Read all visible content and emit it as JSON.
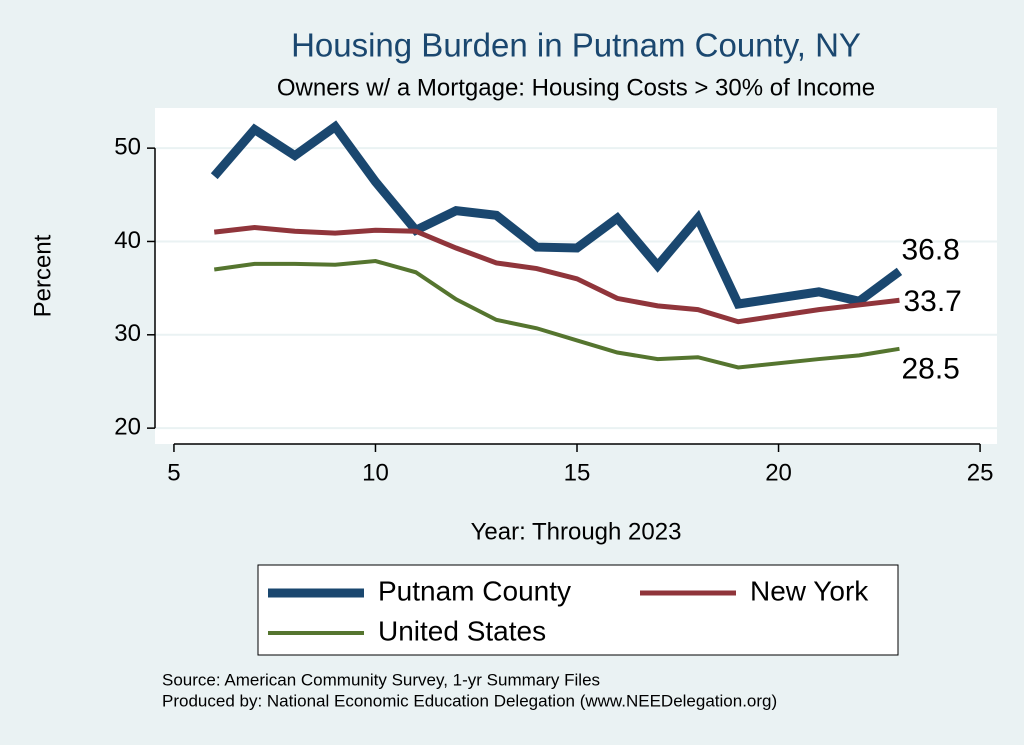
{
  "chart_data": {
    "type": "line",
    "title": "Housing Burden in Putnam County, NY",
    "subtitle": "Owners w/ a Mortgage: Housing Costs > 30% of Income",
    "x_label": "Year: Through 2023",
    "y_label": "Percent",
    "x": [
      6,
      7,
      8,
      9,
      10,
      11,
      12,
      13,
      14,
      15,
      16,
      17,
      18,
      19,
      21,
      22,
      23
    ],
    "series": [
      {
        "name": "Putnam County",
        "color": "#1a476f",
        "values": [
          47,
          52,
          49.2,
          52.3,
          46.4,
          41.2,
          43.3,
          42.8,
          39.4,
          39.3,
          42.5,
          37.4,
          42.5,
          33.3,
          34.6,
          33.6,
          36.8
        ]
      },
      {
        "name": "New York",
        "color": "#90353b",
        "values": [
          41,
          41.5,
          41.1,
          40.9,
          41.2,
          41.1,
          39.3,
          37.7,
          37.1,
          36.0,
          33.9,
          33.1,
          32.7,
          31.4,
          32.7,
          33.2,
          33.7
        ]
      },
      {
        "name": "United States",
        "color": "#55752f",
        "values": [
          37,
          37.6,
          37.6,
          37.5,
          37.9,
          36.7,
          33.8,
          31.6,
          30.7,
          29.4,
          28.1,
          27.4,
          27.6,
          26.5,
          27.4,
          27.8,
          28.5
        ]
      }
    ],
    "xlim": [
      4.53,
      25.42
    ],
    "xticks": [
      5,
      10,
      15,
      20,
      25
    ],
    "ylim": [
      18.3,
      54.3
    ],
    "yticks": [
      20,
      30,
      40,
      50
    ],
    "grid": true,
    "notes": [
      "Source: American Community Survey, 1-yr Summary Files",
      "Produced by: National Economic Education Delegation (www.NEEDelegation.org)"
    ]
  }
}
